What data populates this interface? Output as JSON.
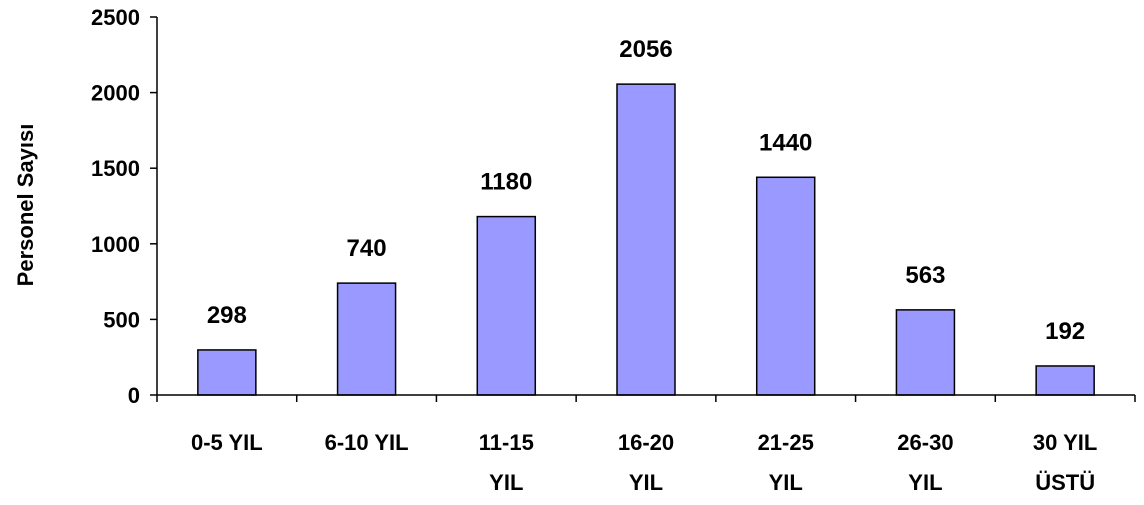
{
  "chart_data": {
    "type": "bar",
    "title": "",
    "xlabel": "",
    "ylabel": "Personel Sayısı",
    "ylim": [
      0,
      2500
    ],
    "yticks": [
      0,
      500,
      1000,
      1500,
      2000,
      2500
    ],
    "categories": [
      [
        "0-5 YIL"
      ],
      [
        "6-10 YIL"
      ],
      [
        "11-15",
        "YIL"
      ],
      [
        "16-20",
        "YIL"
      ],
      [
        "21-25",
        "YIL"
      ],
      [
        "26-30",
        "YIL"
      ],
      [
        "30 YIL",
        "ÜSTÜ"
      ]
    ],
    "values": [
      298,
      740,
      1180,
      2056,
      1440,
      563,
      192
    ],
    "bar_color": "#9999ff",
    "bar_stroke": "#000000",
    "grid": false,
    "legend": "none"
  }
}
